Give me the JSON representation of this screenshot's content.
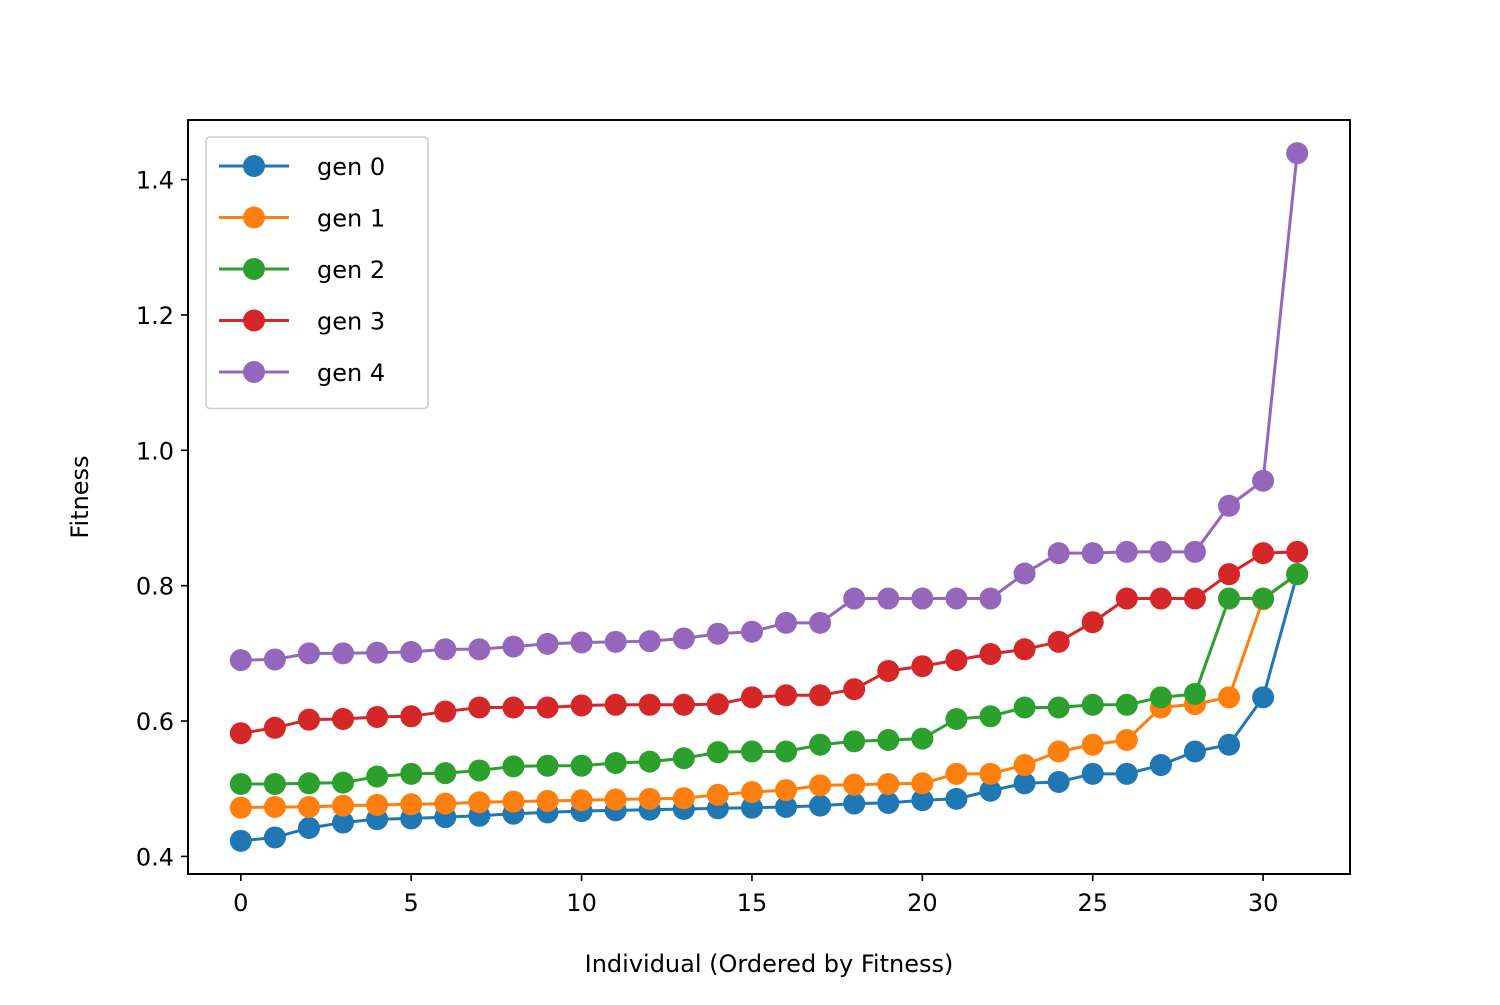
{
  "chart_data": {
    "type": "line",
    "title": "",
    "xlabel": "Individual (Ordered by Fitness)",
    "ylabel": "Fitness",
    "xlim": [
      -1.55,
      32.55
    ],
    "ylim": [
      0.374,
      1.488
    ],
    "xticks": [
      0,
      5,
      10,
      15,
      20,
      25,
      30
    ],
    "yticks": [
      0.4,
      0.6,
      0.8,
      1.0,
      1.2,
      1.4
    ],
    "xtick_labels": [
      "0",
      "5",
      "10",
      "15",
      "20",
      "25",
      "30"
    ],
    "ytick_labels": [
      "0.4",
      "0.6",
      "0.8",
      "1.0",
      "1.2",
      "1.4"
    ],
    "grid": false,
    "legend_position": "upper-left",
    "marker": "circle",
    "x": [
      0,
      1,
      2,
      3,
      4,
      5,
      6,
      7,
      8,
      9,
      10,
      11,
      12,
      13,
      14,
      15,
      16,
      17,
      18,
      19,
      20,
      21,
      22,
      23,
      24,
      25,
      26,
      27,
      28,
      29,
      30,
      31
    ],
    "series": [
      {
        "name": "gen 0",
        "color": "#1f77b4",
        "values": [
          0.423,
          0.428,
          0.442,
          0.45,
          0.455,
          0.456,
          0.458,
          0.46,
          0.463,
          0.465,
          0.467,
          0.468,
          0.469,
          0.47,
          0.471,
          0.472,
          0.473,
          0.475,
          0.478,
          0.479,
          0.483,
          0.485,
          0.497,
          0.508,
          0.51,
          0.522,
          0.522,
          0.535,
          0.555,
          0.565,
          0.635,
          0.817
        ]
      },
      {
        "name": "gen 1",
        "color": "#ff7f0e",
        "values": [
          0.472,
          0.473,
          0.473,
          0.475,
          0.476,
          0.477,
          0.478,
          0.48,
          0.481,
          0.482,
          0.483,
          0.484,
          0.485,
          0.486,
          0.491,
          0.495,
          0.498,
          0.505,
          0.506,
          0.507,
          0.508,
          0.522,
          0.522,
          0.535,
          0.555,
          0.565,
          0.572,
          0.62,
          0.625,
          0.635,
          0.78,
          0.817
        ]
      },
      {
        "name": "gen 2",
        "color": "#2ca02c",
        "values": [
          0.507,
          0.507,
          0.508,
          0.509,
          0.518,
          0.522,
          0.523,
          0.527,
          0.533,
          0.534,
          0.534,
          0.538,
          0.54,
          0.545,
          0.554,
          0.555,
          0.555,
          0.565,
          0.57,
          0.572,
          0.574,
          0.603,
          0.607,
          0.62,
          0.62,
          0.624,
          0.624,
          0.635,
          0.64,
          0.781,
          0.781,
          0.817
        ]
      },
      {
        "name": "gen 3",
        "color": "#d62728",
        "values": [
          0.582,
          0.59,
          0.602,
          0.603,
          0.606,
          0.607,
          0.614,
          0.62,
          0.62,
          0.62,
          0.623,
          0.624,
          0.624,
          0.624,
          0.625,
          0.635,
          0.638,
          0.638,
          0.647,
          0.674,
          0.681,
          0.69,
          0.699,
          0.706,
          0.717,
          0.746,
          0.781,
          0.781,
          0.781,
          0.817,
          0.848,
          0.85
        ]
      },
      {
        "name": "gen 4",
        "color": "#9467bd",
        "values": [
          0.69,
          0.691,
          0.7,
          0.7,
          0.701,
          0.702,
          0.706,
          0.706,
          0.71,
          0.714,
          0.716,
          0.717,
          0.718,
          0.722,
          0.729,
          0.732,
          0.745,
          0.745,
          0.781,
          0.781,
          0.781,
          0.781,
          0.781,
          0.818,
          0.848,
          0.848,
          0.85,
          0.85,
          0.85,
          0.918,
          0.955,
          1.439
        ]
      }
    ]
  }
}
